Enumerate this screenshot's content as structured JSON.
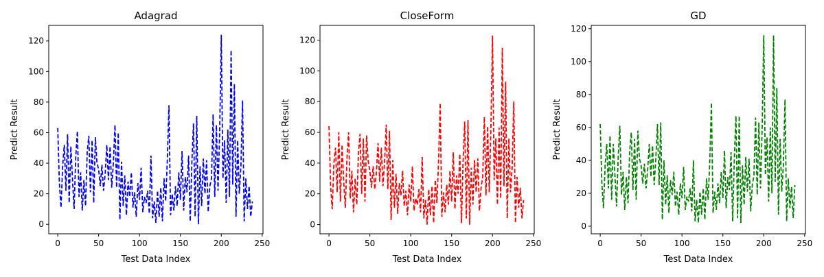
{
  "chart_data": [
    {
      "type": "line",
      "title": "Adagrad",
      "xlabel": "Test Data Index",
      "ylabel": "Predict Result",
      "color": "#0000ff",
      "linestyle": "dashed",
      "xlim": [
        -11,
        251
      ],
      "ylim": [
        -6.2,
        130.2
      ],
      "xticks": [
        0,
        50,
        100,
        150,
        200,
        250
      ],
      "yticks": [
        0,
        20,
        40,
        60,
        80,
        100,
        120
      ],
      "x": [
        0,
        2,
        4,
        6,
        8,
        10,
        12,
        14,
        16,
        18,
        20,
        22,
        24,
        26,
        28,
        30,
        32,
        34,
        36,
        38,
        40,
        42,
        44,
        46,
        48,
        50,
        52,
        54,
        56,
        58,
        60,
        62,
        64,
        66,
        68,
        70,
        72,
        74,
        76,
        78,
        80,
        82,
        84,
        86,
        88,
        90,
        92,
        94,
        96,
        98,
        100,
        102,
        104,
        106,
        108,
        110,
        112,
        114,
        116,
        118,
        120,
        122,
        124,
        126,
        128,
        130,
        132,
        134,
        136,
        138,
        140,
        142,
        144,
        146,
        148,
        150,
        152,
        154,
        156,
        158,
        160,
        162,
        164,
        166,
        168,
        170,
        172,
        174,
        176,
        178,
        180,
        182,
        184,
        186,
        188,
        190,
        192,
        194,
        196,
        198,
        200,
        202,
        204,
        206,
        208,
        210,
        212,
        214,
        216,
        218,
        220,
        222,
        224,
        226,
        228,
        230,
        232,
        234,
        236,
        238
      ],
      "values": [
        63,
        27,
        11,
        38,
        52,
        22,
        59,
        14,
        51,
        30,
        10,
        44,
        61,
        18,
        34,
        9,
        29,
        12,
        47,
        58,
        21,
        55,
        14,
        57,
        40,
        36,
        25,
        39,
        22,
        33,
        52,
        29,
        51,
        24,
        40,
        65,
        24,
        60,
        3,
        41,
        12,
        32,
        6,
        28,
        18,
        34,
        11,
        21,
        5,
        27,
        16,
        37,
        8,
        18,
        14,
        22,
        7,
        45,
        4,
        15,
        1,
        22,
        5,
        24,
        2,
        30,
        15,
        42,
        78,
        6,
        20,
        9,
        25,
        12,
        34,
        16,
        48,
        9,
        31,
        21,
        45,
        2,
        40,
        66,
        5,
        71,
        0,
        38,
        12,
        43,
        20,
        42,
        8,
        25,
        30,
        72,
        18,
        65,
        22,
        60,
        124,
        30,
        55,
        14,
        62,
        18,
        114,
        26,
        92,
        5,
        55,
        20,
        38,
        81,
        2,
        30,
        10,
        25,
        5,
        15
      ]
    },
    {
      "type": "line",
      "title": "CloseForm",
      "xlabel": "Test Data Index",
      "ylabel": "Predict Result",
      "color": "#ff0000",
      "linestyle": "dashed",
      "xlim": [
        -11,
        251
      ],
      "ylim": [
        -6,
        129.6
      ],
      "xticks": [
        0,
        50,
        100,
        150,
        200,
        250
      ],
      "yticks": [
        0,
        20,
        40,
        60,
        80,
        100,
        120
      ],
      "x": [
        0,
        2,
        4,
        6,
        8,
        10,
        12,
        14,
        16,
        18,
        20,
        22,
        24,
        26,
        28,
        30,
        32,
        34,
        36,
        38,
        40,
        42,
        44,
        46,
        48,
        50,
        52,
        54,
        56,
        58,
        60,
        62,
        64,
        66,
        68,
        70,
        72,
        74,
        76,
        78,
        80,
        82,
        84,
        86,
        88,
        90,
        92,
        94,
        96,
        98,
        100,
        102,
        104,
        106,
        108,
        110,
        112,
        114,
        116,
        118,
        120,
        122,
        124,
        126,
        128,
        130,
        132,
        134,
        136,
        138,
        140,
        142,
        144,
        146,
        148,
        150,
        152,
        154,
        156,
        158,
        160,
        162,
        164,
        166,
        168,
        170,
        172,
        174,
        176,
        178,
        180,
        182,
        184,
        186,
        188,
        190,
        192,
        194,
        196,
        198,
        200,
        202,
        204,
        206,
        208,
        210,
        212,
        214,
        216,
        218,
        220,
        222,
        224,
        226,
        228,
        230,
        232,
        234,
        236,
        238
      ],
      "values": [
        64,
        25,
        10,
        40,
        50,
        21,
        60,
        15,
        52,
        28,
        11,
        43,
        60,
        17,
        35,
        8,
        30,
        13,
        46,
        59,
        20,
        56,
        15,
        58,
        41,
        35,
        24,
        38,
        23,
        34,
        53,
        28,
        50,
        25,
        41,
        65,
        23,
        61,
        3,
        42,
        11,
        33,
        7,
        27,
        19,
        35,
        12,
        22,
        6,
        26,
        15,
        38,
        9,
        17,
        13,
        23,
        8,
        44,
        4,
        16,
        0,
        23,
        6,
        25,
        1,
        29,
        14,
        41,
        79,
        5,
        21,
        8,
        26,
        13,
        35,
        15,
        47,
        10,
        32,
        20,
        46,
        1,
        41,
        67,
        4,
        68,
        0,
        37,
        13,
        42,
        21,
        43,
        9,
        24,
        31,
        70,
        19,
        64,
        21,
        62,
        123,
        29,
        56,
        13,
        63,
        17,
        115,
        25,
        93,
        4,
        56,
        21,
        37,
        80,
        1,
        31,
        11,
        24,
        4,
        16
      ]
    },
    {
      "type": "line",
      "title": "GD",
      "xlabel": "Test Data Index",
      "ylabel": "Predict Result",
      "color": "#008000",
      "linestyle": "dashed",
      "xlim": [
        -11,
        251
      ],
      "ylim": [
        -4.6,
        122
      ],
      "xticks": [
        0,
        50,
        100,
        150,
        200,
        250
      ],
      "yticks": [
        0,
        20,
        40,
        60,
        80,
        100,
        120
      ],
      "x": [
        0,
        2,
        4,
        6,
        8,
        10,
        12,
        14,
        16,
        18,
        20,
        22,
        24,
        26,
        28,
        30,
        32,
        34,
        36,
        38,
        40,
        42,
        44,
        46,
        48,
        50,
        52,
        54,
        56,
        58,
        60,
        62,
        64,
        66,
        68,
        70,
        72,
        74,
        76,
        78,
        80,
        82,
        84,
        86,
        88,
        90,
        92,
        94,
        96,
        98,
        100,
        102,
        104,
        106,
        108,
        110,
        112,
        114,
        116,
        118,
        120,
        122,
        124,
        126,
        128,
        130,
        132,
        134,
        136,
        138,
        140,
        142,
        144,
        146,
        148,
        150,
        152,
        154,
        156,
        158,
        160,
        162,
        164,
        166,
        168,
        170,
        172,
        174,
        176,
        178,
        180,
        182,
        184,
        186,
        188,
        190,
        192,
        194,
        196,
        198,
        200,
        202,
        204,
        206,
        208,
        210,
        212,
        214,
        216,
        218,
        220,
        222,
        224,
        226,
        228,
        230,
        232,
        234,
        236,
        238
      ],
      "values": [
        62,
        26,
        11,
        37,
        50,
        23,
        55,
        16,
        50,
        31,
        12,
        42,
        61,
        19,
        33,
        10,
        30,
        14,
        45,
        57,
        22,
        53,
        16,
        58,
        41,
        37,
        26,
        38,
        23,
        34,
        50,
        30,
        49,
        25,
        41,
        62,
        25,
        63,
        4,
        40,
        13,
        31,
        8,
        28,
        19,
        33,
        12,
        21,
        7,
        26,
        17,
        36,
        10,
        18,
        15,
        23,
        9,
        40,
        3,
        16,
        2,
        21,
        7,
        23,
        4,
        29,
        16,
        40,
        75,
        8,
        21,
        10,
        26,
        14,
        33,
        17,
        46,
        11,
        30,
        22,
        45,
        3,
        41,
        67,
        5,
        67,
        2,
        37,
        13,
        42,
        21,
        41,
        9,
        25,
        31,
        66,
        19,
        63,
        23,
        59,
        116,
        31,
        54,
        15,
        60,
        20,
        116,
        27,
        84,
        7,
        53,
        21,
        37,
        77,
        3,
        29,
        11,
        24,
        5,
        25
      ]
    }
  ]
}
